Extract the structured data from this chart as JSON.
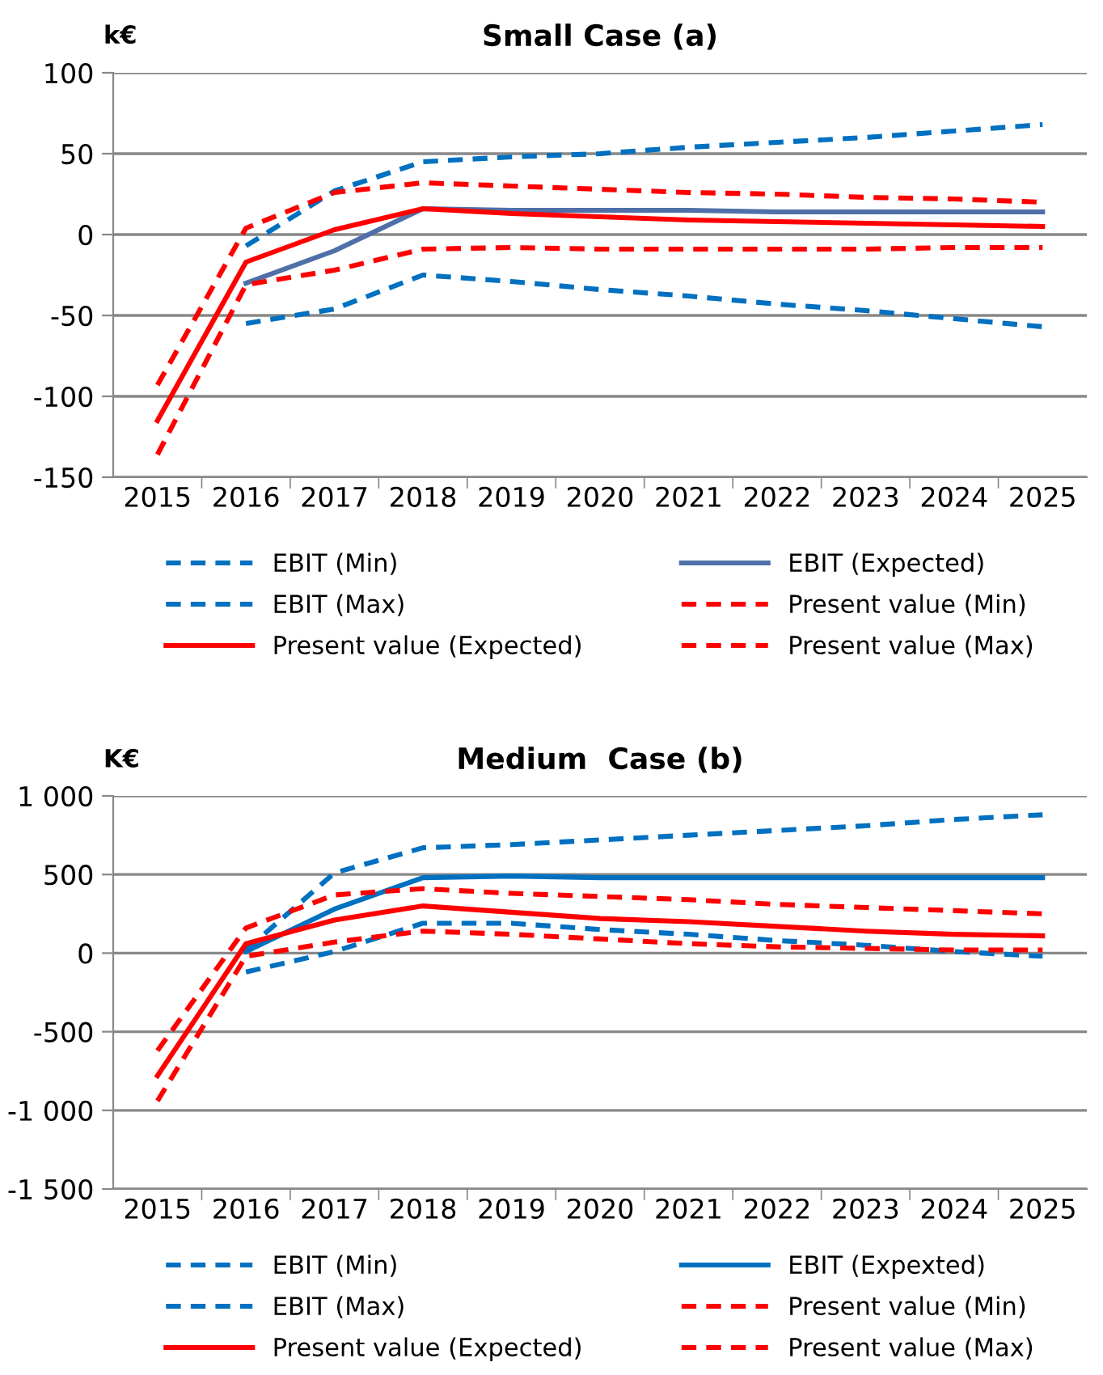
{
  "chart_data": [
    {
      "type": "line",
      "title": "Small Case (a)",
      "ylabel": "k€",
      "categories": [
        "2015",
        "2016",
        "2017",
        "2018",
        "2019",
        "2020",
        "2021",
        "2022",
        "2023",
        "2024",
        "2025"
      ],
      "ylim": [
        -150,
        100
      ],
      "yticks": [
        -150,
        -100,
        -50,
        0,
        50,
        100
      ],
      "grid": "y",
      "legend": "bottom",
      "marker": "none",
      "series": [
        {
          "name": "EBIT (Min)",
          "color": "#0070c0",
          "line_style": "dashed",
          "values": [
            null,
            -55,
            -46,
            -25,
            -29,
            -34,
            -38,
            -43,
            -47,
            -52,
            -57
          ]
        },
        {
          "name": "EBIT (Expected)",
          "color": "#4f6fa8",
          "line_style": "solid",
          "values": [
            null,
            -30,
            -10,
            16,
            15,
            15,
            15,
            14,
            14,
            14,
            14
          ]
        },
        {
          "name": "EBIT (Max)",
          "color": "#0070c0",
          "line_style": "dashed",
          "values": [
            null,
            -7,
            27,
            45,
            48,
            50,
            54,
            57,
            60,
            64,
            68
          ]
        },
        {
          "name": "Present value (Min)",
          "color": "#ff0000",
          "line_style": "dashed",
          "values": [
            -136,
            -31,
            -22,
            -9,
            -8,
            -9,
            -9,
            -9,
            -9,
            -8,
            -8
          ]
        },
        {
          "name": "Present value (Expected)",
          "color": "#ff0000",
          "line_style": "solid",
          "values": [
            -115,
            -17,
            3,
            16,
            13,
            11,
            9,
            8,
            7,
            6,
            5
          ]
        },
        {
          "name": "Present value (Max)",
          "color": "#ff0000",
          "line_style": "dashed",
          "values": [
            -93,
            4,
            26,
            32,
            30,
            28,
            26,
            25,
            23,
            22,
            20
          ]
        }
      ]
    },
    {
      "type": "line",
      "title": "Medium  Case (b)",
      "ylabel": "K€",
      "categories": [
        "2015",
        "2016",
        "2017",
        "2018",
        "2019",
        "2020",
        "2021",
        "2022",
        "2023",
        "2024",
        "2025"
      ],
      "ylim": [
        -1500,
        1000
      ],
      "yticks": [
        {
          "value": -1500,
          "label": "-1 500"
        },
        {
          "value": -1000,
          "label": "-1 000"
        },
        -500,
        0,
        500,
        {
          "value": 1000,
          "label": "1 000"
        }
      ],
      "grid": "y",
      "legend": "bottom",
      "marker": "none",
      "series": [
        {
          "name": "EBIT (Min)",
          "color": "#0070c0",
          "line_style": "dashed",
          "values": [
            null,
            -120,
            10,
            190,
            190,
            150,
            120,
            80,
            50,
            10,
            -20
          ]
        },
        {
          "name": "EBIT (Expexted)",
          "color": "#0070c0",
          "line_style": "solid",
          "values": [
            null,
            10,
            280,
            480,
            490,
            480,
            480,
            480,
            480,
            480,
            480
          ]
        },
        {
          "name": "EBIT (Max)",
          "color": "#0070c0",
          "line_style": "dashed",
          "values": [
            null,
            20,
            510,
            670,
            690,
            720,
            750,
            780,
            810,
            850,
            880
          ]
        },
        {
          "name": "Present value (Min)",
          "color": "#ff0000",
          "line_style": "dashed",
          "values": [
            -940,
            -20,
            70,
            140,
            120,
            90,
            60,
            40,
            30,
            20,
            20
          ]
        },
        {
          "name": "Present value (Expected)",
          "color": "#ff0000",
          "line_style": "solid",
          "values": [
            -780,
            60,
            210,
            300,
            260,
            220,
            200,
            170,
            140,
            120,
            110
          ]
        },
        {
          "name": "Present value (Max)",
          "color": "#ff0000",
          "line_style": "dashed",
          "values": [
            -620,
            160,
            370,
            410,
            380,
            360,
            340,
            310,
            290,
            270,
            250
          ]
        }
      ]
    }
  ]
}
